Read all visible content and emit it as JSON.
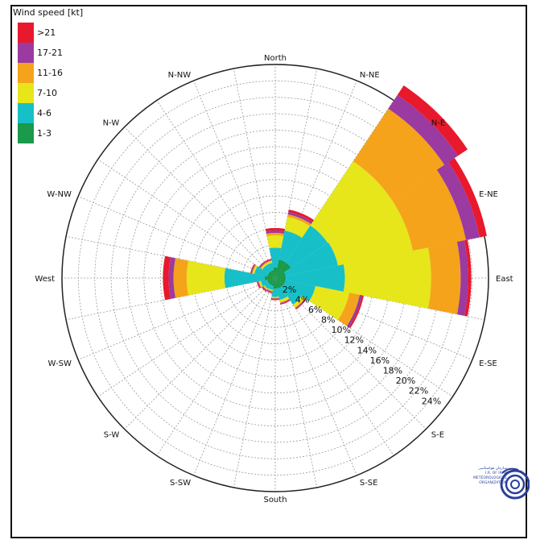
{
  "chart_data": {
    "type": "windrose",
    "legend_title": "Wind speed [kt]",
    "legend_placement": "top-left",
    "speed_bins": [
      {
        "label": ">21",
        "color": "#e8192c"
      },
      {
        "label": "17-21",
        "color": "#9b3aa0"
      },
      {
        "label": "11-16",
        "color": "#f5a31a"
      },
      {
        "label": "7-10",
        "color": "#e6e61a"
      },
      {
        "label": "4-6",
        "color": "#17c0c8"
      },
      {
        "label": "1-3",
        "color": "#1a9a4a"
      }
    ],
    "directions": [
      "North",
      "N-NE",
      "N-E",
      "E-NE",
      "East",
      "E-SE",
      "S-E",
      "S-SE",
      "South",
      "S-SW",
      "S-W",
      "W-SW",
      "West",
      "W-NW",
      "N-W",
      "N-NW"
    ],
    "radial_ticks": [
      "2%",
      "4%",
      "6%",
      "8%",
      "10%",
      "12%",
      "14%",
      "16%",
      "18%",
      "20%",
      "22%",
      "24%"
    ],
    "radial_max": 26,
    "grid": true,
    "series": [
      {
        "label": "1-3",
        "values": [
          1.3,
          2.3,
          2.3,
          1.3,
          1.3,
          1.3,
          1.3,
          1.3,
          1.3,
          1.0,
          1.0,
          1.0,
          1.3,
          1.0,
          1.0,
          1.0
        ]
      },
      {
        "label": "4-6",
        "values": [
          2.4,
          3.6,
          5.4,
          6.5,
          7.2,
          3.7,
          2.6,
          1.4,
          1.0,
          0.5,
          0.6,
          0.8,
          4.9,
          1.6,
          0.9,
          0.9
        ]
      },
      {
        "label": "7-10",
        "values": [
          1.5,
          1.7,
          9.4,
          9.3,
          10.5,
          4.2,
          0.4,
          0.3,
          0.1,
          0.1,
          0.1,
          0.2,
          4.6,
          0.2,
          0.2,
          0.2
        ]
      },
      {
        "label": "11-16",
        "values": [
          0.3,
          0.3,
          7.7,
          6.6,
          3.6,
          1.3,
          0.1,
          0.1,
          0.1,
          0.1,
          0.1,
          0.1,
          1.6,
          0.1,
          0.1,
          0.1
        ]
      },
      {
        "label": "17-21",
        "values": [
          0.3,
          0.3,
          2.0,
          1.7,
          0.9,
          0.3,
          0.1,
          0.1,
          0.1,
          0.1,
          0.1,
          0.1,
          0.6,
          0.1,
          0.1,
          0.1
        ]
      },
      {
        "label": ">21",
        "values": [
          0.3,
          0.3,
          1.4,
          0.9,
          0.4,
          0.2,
          0.1,
          0.1,
          0.1,
          0.1,
          0.1,
          0.1,
          0.7,
          0.1,
          0.1,
          0.1
        ]
      }
    ]
  },
  "logo": {
    "text_lines": [
      "سازمان هواشناسی",
      "I.R. OF IRAN",
      "METEOROLOGICAL",
      "ORGANIZATION"
    ],
    "color": "#2a3f9a"
  }
}
